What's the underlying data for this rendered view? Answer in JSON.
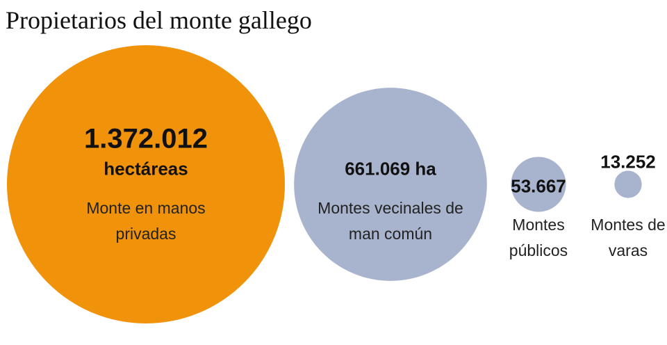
{
  "chart_data": {
    "type": "bubble",
    "title": "Propietarios del monte gallego",
    "categories": [
      "Monte en manos privadas",
      "Montes vecinales de man común",
      "Montes públicos",
      "Montes de varas"
    ],
    "values": [
      1372012,
      661069,
      53667,
      13252
    ],
    "value_labels": [
      "1.372.012",
      "661.069 ha",
      "53.667",
      "13.252"
    ],
    "unit_label": "hectáreas",
    "colors": [
      "#f0920a",
      "#a8b4cd",
      "#a8b4cd",
      "#a8b4cd"
    ]
  }
}
